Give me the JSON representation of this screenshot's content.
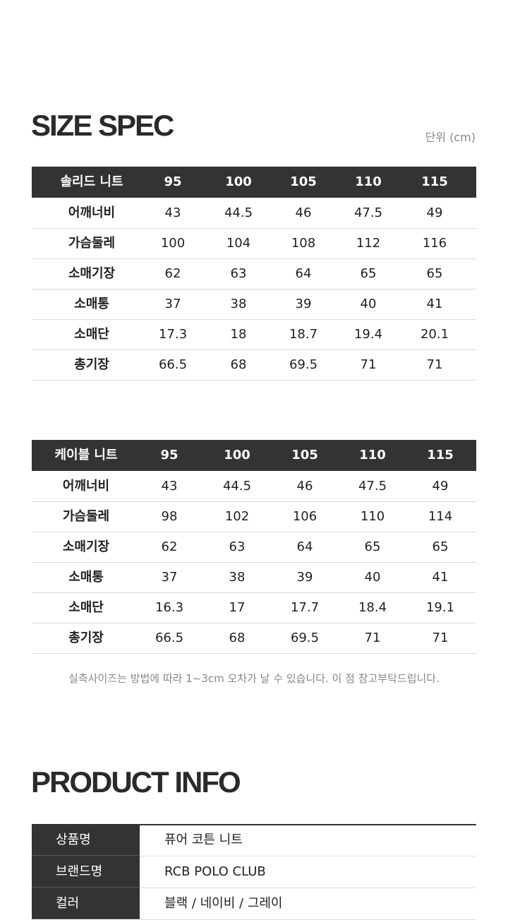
{
  "size_spec": {
    "title": "SIZE SPEC",
    "unit": "단위 (cm)",
    "tables": [
      {
        "header": [
          "솔리드 니트",
          "95",
          "100",
          "105",
          "110",
          "115"
        ],
        "rows": [
          [
            "어깨너비",
            "43",
            "44.5",
            "46",
            "47.5",
            "49"
          ],
          [
            "가슴둘레",
            "100",
            "104",
            "108",
            "112",
            "116"
          ],
          [
            "소매기장",
            "62",
            "63",
            "64",
            "65",
            "65"
          ],
          [
            "소매통",
            "37",
            "38",
            "39",
            "40",
            "41"
          ],
          [
            "소매단",
            "17.3",
            "18",
            "18.7",
            "19.4",
            "20.1"
          ],
          [
            "총기장",
            "66.5",
            "68",
            "69.5",
            "71",
            "71"
          ]
        ]
      },
      {
        "header": [
          "케이블 니트",
          "95",
          "100",
          "105",
          "110",
          "115"
        ],
        "rows": [
          [
            "어깨너비",
            "43",
            "44.5",
            "46",
            "47.5",
            "49"
          ],
          [
            "가슴둘레",
            "98",
            "102",
            "106",
            "110",
            "114"
          ],
          [
            "소매기장",
            "62",
            "63",
            "64",
            "65",
            "65"
          ],
          [
            "소매통",
            "37",
            "38",
            "39",
            "40",
            "41"
          ],
          [
            "소매단",
            "16.3",
            "17",
            "17.7",
            "18.4",
            "19.1"
          ],
          [
            "총기장",
            "66.5",
            "68",
            "69.5",
            "71",
            "71"
          ]
        ]
      }
    ],
    "note": "실측사이즈는 방법에 따라 1~3cm 오차가 날 수 있습니다. 이 점 참고부탁드립니다."
  },
  "product_info": {
    "title": "PRODUCT INFO",
    "rows": [
      [
        "상품명",
        "퓨어 코튼 니트"
      ],
      [
        "브랜드명",
        "RCB POLO CLUB"
      ],
      [
        "컬러",
        "블랙 / 네이비 / 그레이"
      ]
    ]
  }
}
